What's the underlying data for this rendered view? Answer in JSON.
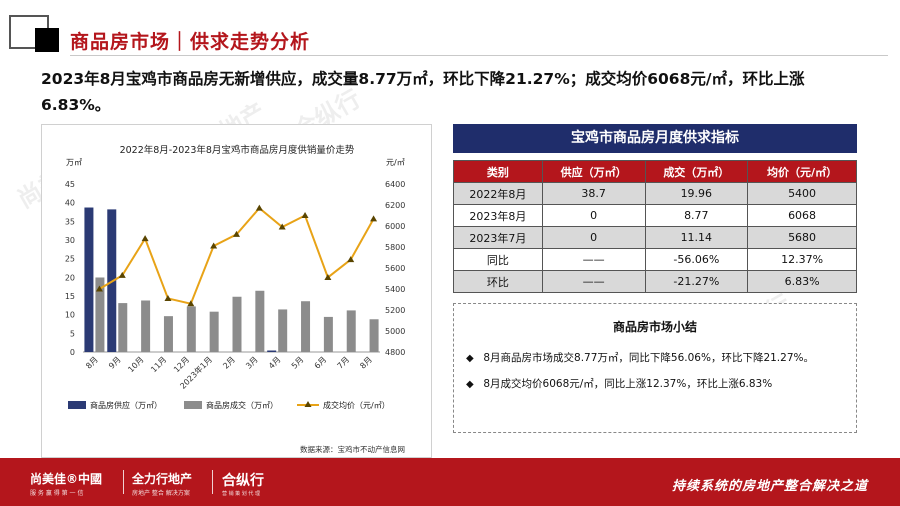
{
  "header": {
    "title": "商品房市场｜供求走势分析"
  },
  "headline": "2023年8月宝鸡市商品房无新增供应，成交量8.77万㎡，环比下降21.27%；成交均价6068元/㎡，环比上涨6.83%。",
  "chart": {
    "source": "数据来源：宝鸡市不动产信息网"
  },
  "chart_data": {
    "type": "bar",
    "title": "2022年8月-2023年8月宝鸡市商品房月度供销量价走势",
    "categories": [
      "8月",
      "9月",
      "10月",
      "11月",
      "12月",
      "2023年1月",
      "2月",
      "3月",
      "4月",
      "5月",
      "6月",
      "7月",
      "8月"
    ],
    "ylabel_left": "万㎡",
    "ylabel_right": "元/㎡",
    "ylim_left": [
      0,
      45
    ],
    "ylim_right": [
      4800,
      6400
    ],
    "yticks_left": [
      0,
      5,
      10,
      15,
      20,
      25,
      30,
      35,
      40,
      45
    ],
    "yticks_right": [
      4800,
      5000,
      5200,
      5400,
      5600,
      5800,
      6000,
      6200,
      6400
    ],
    "legend_position": "bottom",
    "series": [
      {
        "name": "商品房供应（万㎡）",
        "type": "bar",
        "axis": "left",
        "color": "#2b3a74",
        "values": [
          38.7,
          38.2,
          0,
          0,
          0,
          0,
          0,
          0,
          0.4,
          0,
          0,
          0,
          0
        ]
      },
      {
        "name": "商品房成交（万㎡）",
        "type": "bar",
        "axis": "left",
        "color": "#8c8c8c",
        "values": [
          19.96,
          13.1,
          13.8,
          9.6,
          12.2,
          10.8,
          14.8,
          16.4,
          11.4,
          13.6,
          9.4,
          11.14,
          8.77
        ]
      },
      {
        "name": "成交均价（元/㎡）",
        "type": "line",
        "axis": "right",
        "color": "#e8a317",
        "values": [
          5400,
          5530,
          5880,
          5310,
          5260,
          5810,
          5920,
          6170,
          5990,
          6100,
          5510,
          5680,
          6068
        ]
      }
    ]
  },
  "table": {
    "title": "宝鸡市商品房月度供求指标",
    "headers": [
      "类别",
      "供应（万㎡）",
      "成交（万㎡）",
      "均价（元/㎡）"
    ],
    "rows": [
      [
        "2022年8月",
        "38.7",
        "19.96",
        "5400"
      ],
      [
        "2023年8月",
        "0",
        "8.77",
        "6068"
      ],
      [
        "2023年7月",
        "0",
        "11.14",
        "5680"
      ],
      [
        "同比",
        "——",
        "-56.06%",
        "12.37%"
      ],
      [
        "环比",
        "——",
        "-21.27%",
        "6.83%"
      ]
    ]
  },
  "summary": {
    "title": "商品房市场小结",
    "bullet": "◆",
    "items": [
      "8月商品房市场成交8.77万㎡，同比下降56.06%，环比下降21.27%。",
      "8月成交均价6068元/㎡，同比上涨12.37%，环比上涨6.83%"
    ]
  },
  "footer": {
    "logo1": "尚美佳®中國",
    "logo1_sub": "服 务 赢 得 第 一 信",
    "logo2": "全力行地产",
    "logo2_sub": "房地产 整合 解决方案",
    "logo3": "合纵行",
    "logo3_sub": "营 销 策 划 代 理",
    "slogan": "持续系统的房地产整合解决之道"
  },
  "colors": {
    "brand_red": "#b4161c",
    "navy": "#1f2d6b",
    "supply_bar": "#2b3a74",
    "deal_bar": "#8c8c8c",
    "price_line": "#e8a317"
  }
}
